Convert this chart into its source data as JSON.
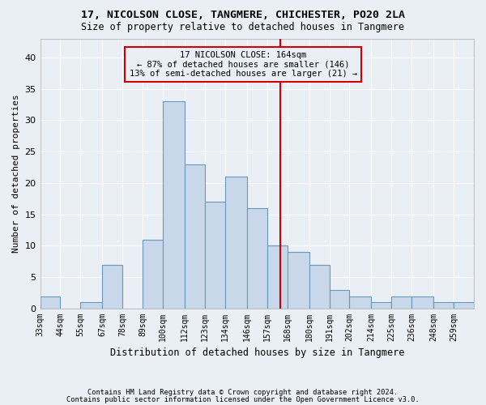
{
  "title1": "17, NICOLSON CLOSE, TANGMERE, CHICHESTER, PO20 2LA",
  "title2": "Size of property relative to detached houses in Tangmere",
  "xlabel": "Distribution of detached houses by size in Tangmere",
  "ylabel": "Number of detached properties",
  "bin_labels": [
    "33sqm",
    "44sqm",
    "55sqm",
    "67sqm",
    "78sqm",
    "89sqm",
    "100sqm",
    "112sqm",
    "123sqm",
    "134sqm",
    "146sqm",
    "157sqm",
    "168sqm",
    "180sqm",
    "191sqm",
    "202sqm",
    "214sqm",
    "225sqm",
    "236sqm",
    "248sqm",
    "259sqm"
  ],
  "bar_heights": [
    2,
    0,
    1,
    7,
    0,
    11,
    33,
    23,
    17,
    21,
    16,
    10,
    9,
    7,
    3,
    2,
    1,
    2,
    2,
    1,
    1
  ],
  "bar_edges": [
    33,
    44,
    55,
    67,
    78,
    89,
    100,
    112,
    123,
    134,
    146,
    157,
    168,
    180,
    191,
    202,
    214,
    225,
    236,
    248,
    259,
    270
  ],
  "bar_color": "#c8d8ea",
  "bar_edge_color": "#6699bb",
  "vline_x": 164,
  "vline_color": "#cc0000",
  "annotation_text": "17 NICOLSON CLOSE: 164sqm\n← 87% of detached houses are smaller (146)\n13% of semi-detached houses are larger (21) →",
  "ylim": [
    0,
    43
  ],
  "yticks": [
    0,
    5,
    10,
    15,
    20,
    25,
    30,
    35,
    40
  ],
  "footer1": "Contains HM Land Registry data © Crown copyright and database right 2024.",
  "footer2": "Contains public sector information licensed under the Open Government Licence v3.0.",
  "bg_color": "#eaeff5",
  "grid_color": "#ffffff"
}
